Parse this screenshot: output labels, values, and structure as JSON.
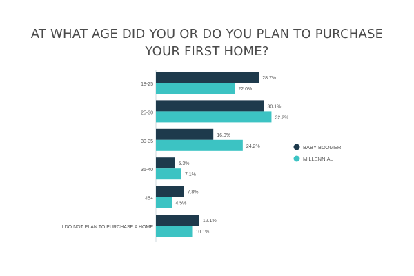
{
  "chart_data": {
    "type": "bar",
    "orientation": "horizontal",
    "title_lines": [
      "AT WHAT AGE DID YOU OR DO YOU PLAN TO PURCHASE",
      "YOUR FIRST HOME?"
    ],
    "categories": [
      "18-25",
      "25-30",
      "30-35",
      "35-40",
      "45+",
      "I DO NOT PLAN TO PURCHASE A HOME"
    ],
    "series": [
      {
        "name": "BABY BOOMER",
        "color": "#1e3a4c",
        "values": [
          28.7,
          30.1,
          16.0,
          5.3,
          7.8,
          12.1
        ],
        "labels": [
          "28.7%",
          "30.1%",
          "16.0%",
          "5.3%",
          "7.8%",
          "12.1%"
        ]
      },
      {
        "name": "MILLENNIAL",
        "color": "#3cc3c3",
        "values": [
          22.0,
          32.2,
          24.2,
          7.1,
          4.5,
          10.1
        ],
        "labels": [
          "22.0%",
          "32.2%",
          "24.2%",
          "7.1%",
          "4.5%",
          "10.1%"
        ]
      }
    ],
    "legend_position": "right",
    "grid": false,
    "xlim": [
      0,
      35
    ]
  }
}
